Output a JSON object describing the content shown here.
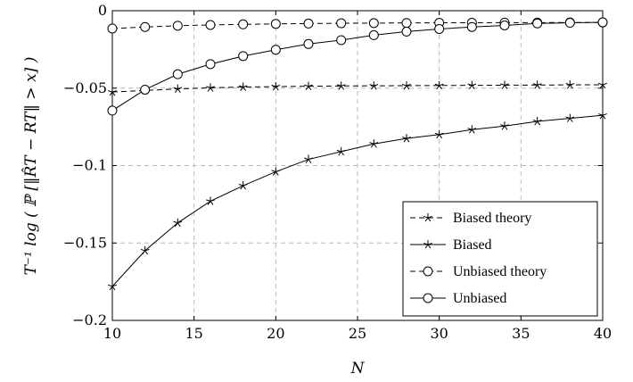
{
  "chart_data": {
    "type": "line",
    "title": "",
    "xlabel": "N",
    "ylabel": "T⁻¹ log ( ℙ [‖R̂T − RT‖ > x] )",
    "x": [
      10,
      12,
      14,
      16,
      18,
      20,
      22,
      24,
      26,
      28,
      30,
      32,
      34,
      36,
      38,
      40
    ],
    "xlim": [
      10,
      40
    ],
    "ylim": [
      -0.2,
      0
    ],
    "xticks": [
      10,
      15,
      20,
      25,
      30,
      35,
      40
    ],
    "yticks": [
      -0.2,
      -0.15,
      -0.1,
      -0.05,
      0
    ],
    "xtick_labels": [
      "10",
      "15",
      "20",
      "25",
      "30",
      "35",
      "40"
    ],
    "ytick_labels": [
      "−0.2",
      "−0.15",
      "−0.1",
      "−0.05",
      "0"
    ],
    "grid": true,
    "legend_position": "bottom-right",
    "series": [
      {
        "name": "Biased theory",
        "line": "dashed",
        "marker": "star",
        "values": [
          -0.0525,
          -0.0515,
          -0.0505,
          -0.0498,
          -0.0493,
          -0.049,
          -0.0488,
          -0.0486,
          -0.0485,
          -0.0484,
          -0.0483,
          -0.0482,
          -0.0481,
          -0.048,
          -0.0479,
          -0.0478
        ]
      },
      {
        "name": "Biased",
        "line": "solid",
        "marker": "star",
        "values": [
          -0.178,
          -0.155,
          -0.137,
          -0.123,
          -0.113,
          -0.104,
          -0.096,
          -0.091,
          -0.086,
          -0.0825,
          -0.08,
          -0.0768,
          -0.0745,
          -0.0715,
          -0.0695,
          -0.0675
        ]
      },
      {
        "name": "Unbiased theory",
        "line": "dashed",
        "marker": "circle",
        "values": [
          -0.0115,
          -0.0105,
          -0.0097,
          -0.0092,
          -0.0088,
          -0.0085,
          -0.0083,
          -0.0081,
          -0.008,
          -0.0079,
          -0.0078,
          -0.0078,
          -0.0077,
          -0.0077,
          -0.0076,
          -0.0076
        ]
      },
      {
        "name": "Unbiased",
        "line": "solid",
        "marker": "circle",
        "values": [
          -0.0645,
          -0.051,
          -0.041,
          -0.0345,
          -0.0293,
          -0.0252,
          -0.0215,
          -0.019,
          -0.0158,
          -0.0135,
          -0.0118,
          -0.0105,
          -0.0095,
          -0.0082,
          -0.0078,
          -0.0075
        ]
      }
    ]
  }
}
